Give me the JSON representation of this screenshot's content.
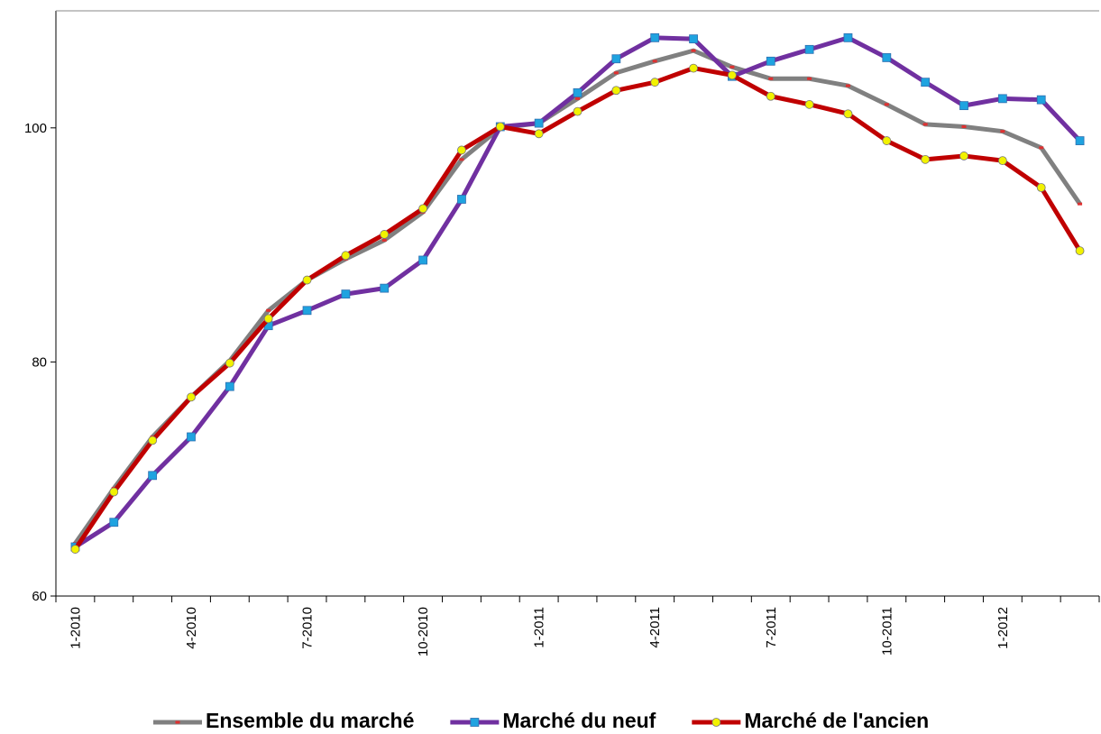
{
  "chart_data": {
    "type": "line",
    "categories": [
      "1-2010",
      null,
      null,
      "4-2010",
      null,
      null,
      "7-2010",
      null,
      null,
      "10-2010",
      null,
      null,
      "1-2011",
      null,
      null,
      "4-2011",
      null,
      null,
      "7-2011",
      null,
      null,
      "10-2011",
      null,
      null,
      "1-2012",
      null,
      null
    ],
    "ylim": [
      60,
      110
    ],
    "yticks": [
      60,
      80,
      100
    ],
    "series": [
      {
        "name": "Ensemble du marché",
        "color": "#808080",
        "marker": "dash",
        "marker_color": "#e03030",
        "values": [
          64.5,
          69.2,
          73.6,
          77.0,
          80.1,
          84.4,
          87.0,
          88.8,
          90.4,
          92.8,
          97.3,
          100,
          100.4,
          102.5,
          104.7,
          105.7,
          106.6,
          105.2,
          104.2,
          104.2,
          103.6,
          102.0,
          100.3,
          100.1,
          99.7,
          98.3,
          93.5
        ]
      },
      {
        "name": "Marché du neuf",
        "color": "#7030a0",
        "marker": "square",
        "marker_color": "#1fa3e0",
        "values": [
          64.2,
          66.3,
          70.3,
          73.6,
          77.9,
          83.1,
          84.4,
          85.8,
          86.3,
          88.7,
          93.9,
          100.1,
          100.4,
          103.0,
          105.9,
          107.7,
          107.6,
          104.4,
          105.7,
          106.7,
          107.7,
          106.0,
          103.9,
          101.9,
          102.5,
          102.4,
          98.9
        ]
      },
      {
        "name": "Marché de l'ancien",
        "color": "#c00000",
        "marker": "circle",
        "marker_color": "#f2f200",
        "values": [
          64.0,
          68.9,
          73.3,
          77.0,
          79.9,
          83.7,
          87.0,
          89.1,
          90.9,
          93.1,
          98.1,
          100.1,
          99.5,
          101.4,
          103.2,
          103.9,
          105.1,
          104.5,
          102.7,
          102.0,
          101.2,
          98.9,
          97.3,
          97.6,
          97.2,
          94.9,
          89.5
        ]
      }
    ]
  }
}
